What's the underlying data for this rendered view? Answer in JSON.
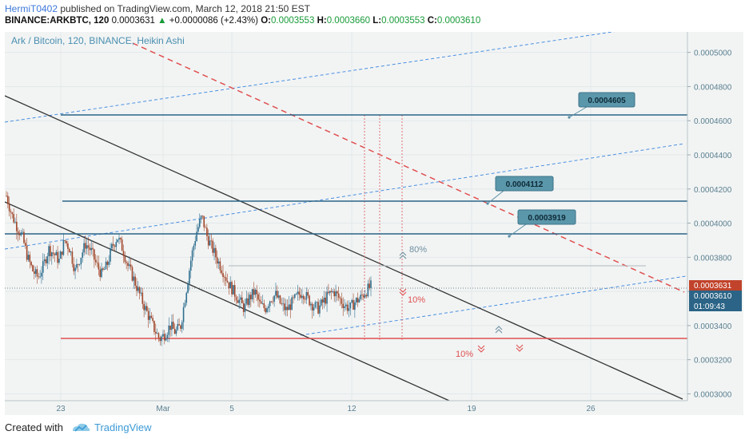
{
  "header": {
    "author": "HermiT0402",
    "published_text": "published on TradingView.com, March 12, 2018 21:50 EST",
    "symbol_line": "BINANCE:ARKBTC, 120",
    "last_price": "0.0003631",
    "change_arrow": "▲",
    "change": "+0.0000086 (+2.43%)",
    "open_label": "O:",
    "open": "0.0003553",
    "high_label": "H:",
    "high": "0.0003660",
    "low_label": "L:",
    "low": "0.0003553",
    "close_label": "C:",
    "close": "0.0003610"
  },
  "chart_data": {
    "type": "candlestick",
    "title": "Ark / Bitcoin, 120, BINANCE, Heikin Ashi",
    "x_tick_labels": [
      "23",
      "Mar",
      "5",
      "12",
      "19",
      "26"
    ],
    "y_tick_labels": [
      "0.0003000",
      "0.0003200",
      "0.0003400",
      "0.0003600",
      "0.0003800",
      "0.0004000",
      "0.0004200",
      "0.0004400",
      "0.0004600",
      "0.0004800",
      "0.0005000"
    ],
    "ylim": [
      0.000296,
      0.000512
    ],
    "price_series_approx": [
      0.000416,
      0.000405,
      0.000398,
      0.000392,
      0.00038,
      0.000372,
      0.000368,
      0.000375,
      0.000385,
      0.000382,
      0.000378,
      0.00039,
      0.000385,
      0.000372,
      0.00038,
      0.000388,
      0.000384,
      0.000376,
      0.00037,
      0.000375,
      0.000386,
      0.000392,
      0.000385,
      0.000375,
      0.000368,
      0.00036,
      0.000352,
      0.000345,
      0.000338,
      0.000332,
      0.000335,
      0.00034,
      0.000336,
      0.00034,
      0.00036,
      0.00038,
      0.000395,
      0.000404,
      0.000392,
      0.000385,
      0.000378,
      0.000372,
      0.000365,
      0.00036,
      0.000355,
      0.00035,
      0.000356,
      0.00036,
      0.000352,
      0.00035,
      0.000356,
      0.000358,
      0.000352,
      0.000349,
      0.000353,
      0.000357,
      0.00036,
      0.000356,
      0.000352,
      0.00035,
      0.000354,
      0.000358,
      0.00036,
      0.000356,
      0.000352,
      0.00035,
      0.000354,
      0.000356,
      0.00036,
      0.000363
    ],
    "price_label_boxes": [
      {
        "text": "0.0003631",
        "color": "#c1432b"
      },
      {
        "text": "0.0003610",
        "color": "#2b6486"
      },
      {
        "text": "01:09:43",
        "color": "#2b6486"
      }
    ],
    "annotations": [
      {
        "text": "0.0004605"
      },
      {
        "text": "0.0004112"
      },
      {
        "text": "0.0003919"
      },
      {
        "text": "80%"
      },
      {
        "text": "10%"
      },
      {
        "text": "10%"
      }
    ],
    "horizontal_levels": [
      0.0004605,
      0.0004112,
      0.0003919,
      0.000333
    ],
    "colors": {
      "up": "#2f6f8f",
      "down": "#a0462a",
      "level": "#2b6486",
      "support": "#e05050",
      "downtrend": "#e05050",
      "channel": "#4a8fe0",
      "trend": "#333333"
    },
    "grid": true,
    "legend": "none"
  },
  "footer": {
    "created_with": "Created with",
    "brand": "TradingView"
  }
}
